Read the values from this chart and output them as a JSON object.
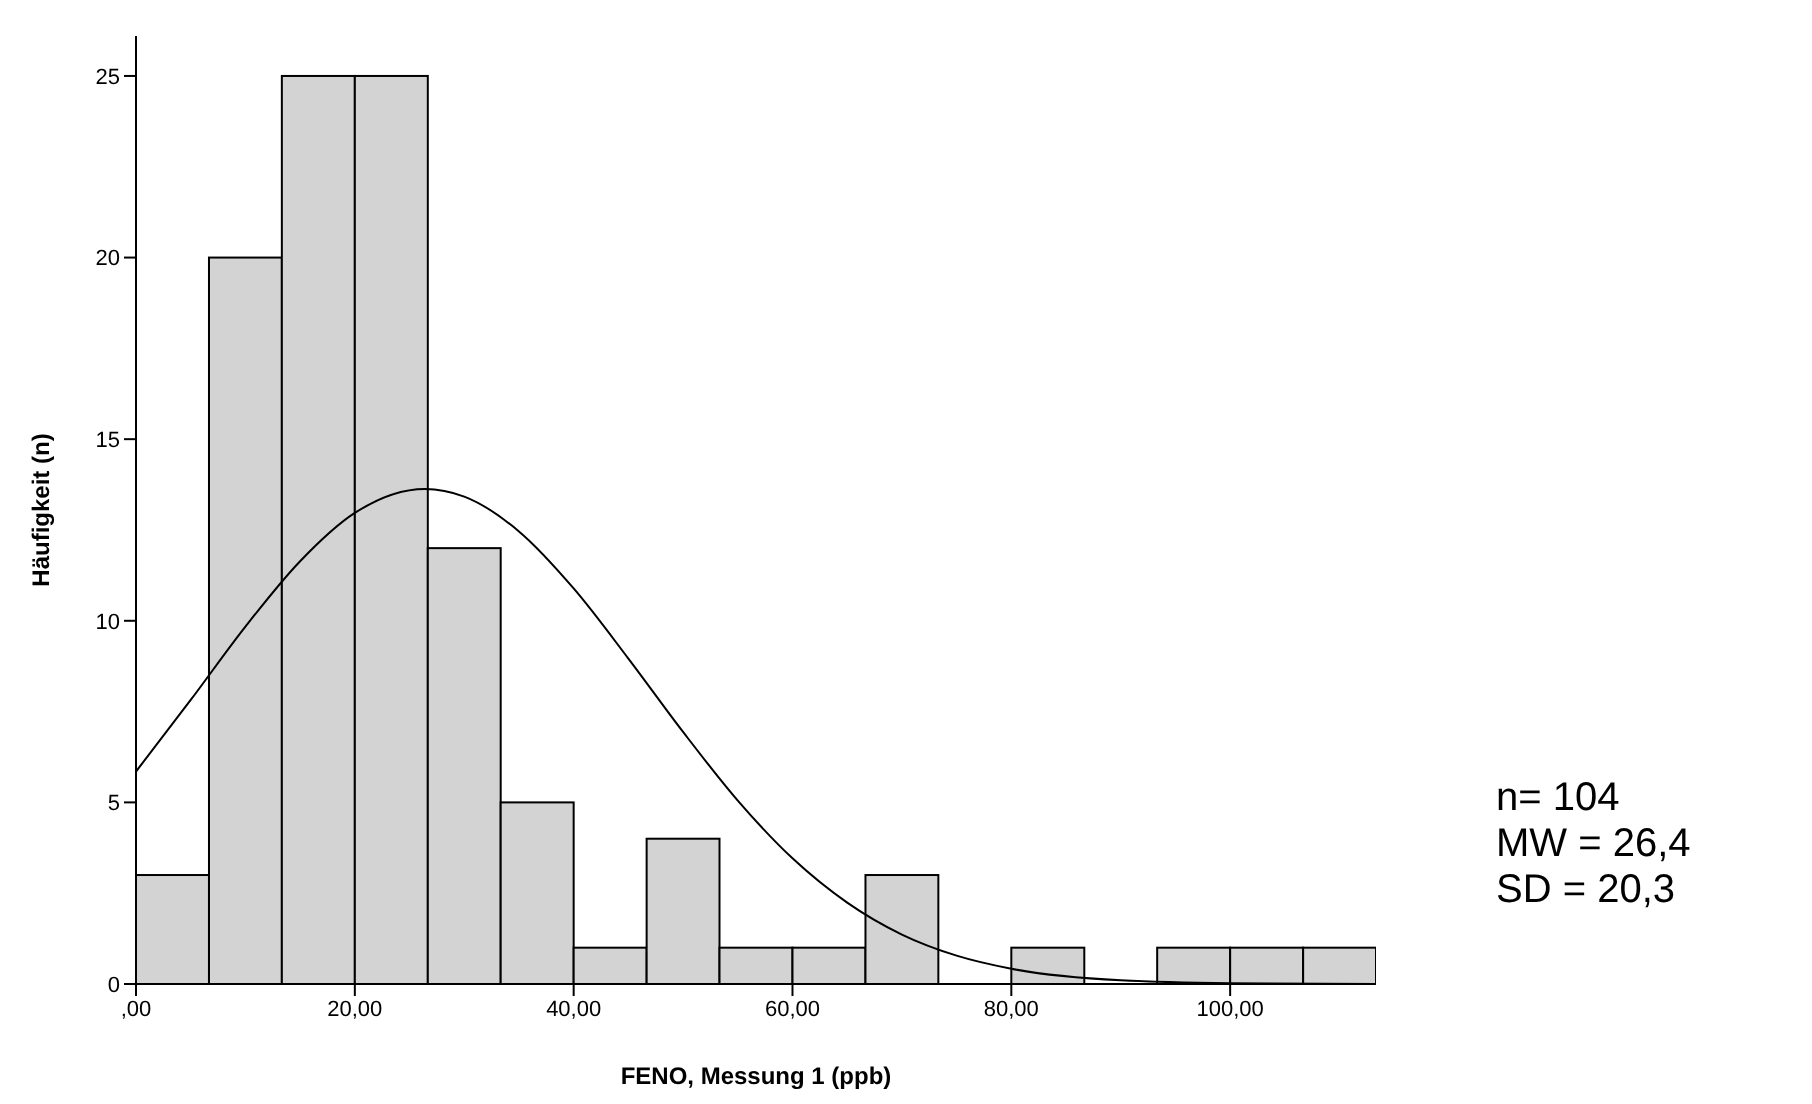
{
  "chart_data": {
    "type": "histogram",
    "xlabel": "FENO, Messung 1 (ppb)",
    "ylabel": "Häufigkeit (n)",
    "bins": [
      0,
      6.67,
      13.33,
      20,
      26.67,
      33.33,
      40,
      46.67,
      53.33,
      60,
      66.67,
      73.33,
      80,
      86.67,
      93.33,
      100,
      106.67,
      113.33
    ],
    "values": [
      3,
      20,
      25,
      25,
      12,
      5,
      1,
      4,
      1,
      1,
      3,
      0,
      1,
      0,
      1,
      1,
      1
    ],
    "color": "#d3d3d3",
    "series": [
      {
        "type": "line",
        "color": "#000000",
        "x": [
          0,
          5,
          10,
          15,
          20,
          26.4,
          30,
          35,
          40,
          45,
          50,
          55,
          60,
          65,
          70,
          75,
          80,
          90,
          100,
          113.33
        ],
        "values": [
          5.85,
          7.82,
          9.84,
          11.64,
          12.97,
          13.63,
          13.42,
          12.46,
          10.89,
          8.96,
          6.94,
          5.05,
          3.46,
          2.24,
          1.36,
          0.78,
          0.42,
          0.1,
          0.02,
          0
        ]
      }
    ],
    "xlim": [
      0,
      113.33
    ],
    "xticks": [
      {
        "value": 0,
        "label": ",00"
      },
      {
        "value": 20,
        "label": "20,00"
      },
      {
        "value": 40,
        "label": "40,00"
      },
      {
        "value": 60,
        "label": "60,00"
      },
      {
        "value": 80,
        "label": "80,00"
      },
      {
        "value": 100,
        "label": "100,00"
      }
    ],
    "ylim": [
      0,
      26.1
    ],
    "yticks": [
      0,
      5,
      10,
      15,
      20,
      25
    ],
    "grid": false,
    "legend": false,
    "annotations": [
      "n= 104",
      "MW = 26,4",
      "SD = 20,3"
    ]
  }
}
